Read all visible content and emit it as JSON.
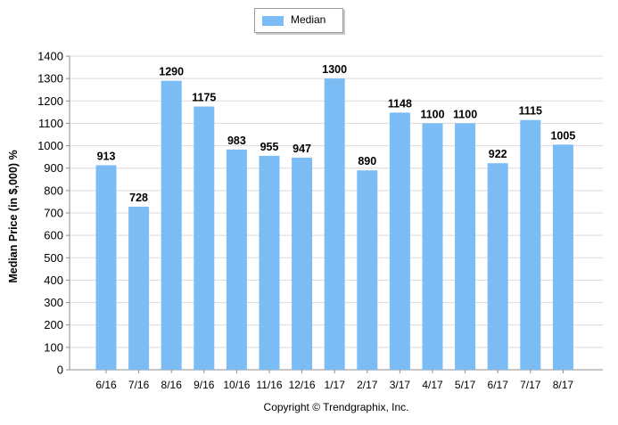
{
  "chart_data": {
    "type": "bar",
    "categories": [
      "6/16",
      "7/16",
      "8/16",
      "9/16",
      "10/16",
      "11/16",
      "12/16",
      "1/17",
      "2/17",
      "3/17",
      "4/17",
      "5/17",
      "6/17",
      "7/17",
      "8/17"
    ],
    "series": [
      {
        "name": "Median",
        "values": [
          913,
          728,
          1290,
          1175,
          983,
          955,
          947,
          1300,
          890,
          1148,
          1100,
          1100,
          922,
          1115,
          1005
        ],
        "color": "#7abcf3"
      }
    ],
    "data_labels": [
      "913",
      "728",
      "1290",
      "1175",
      "983",
      "955",
      "947",
      "1300",
      "890",
      "1148",
      "1100",
      "1100",
      "922",
      "1115",
      "1005"
    ],
    "ylabel": "Median Price (in $,000) %",
    "xlabel": "",
    "ylim": [
      0,
      1400
    ],
    "yticks": [
      0,
      100,
      200,
      300,
      400,
      500,
      600,
      700,
      800,
      900,
      1000,
      1100,
      1200,
      1300,
      1400
    ],
    "grid": true,
    "legend_position": "top-center",
    "footer": "Copyright © Trendgraphix, Inc."
  }
}
